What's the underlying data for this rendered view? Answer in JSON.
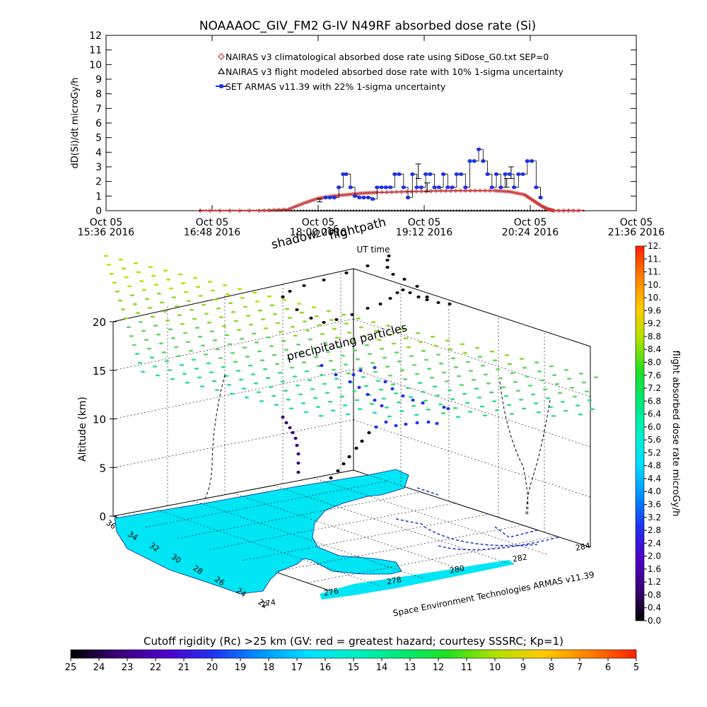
{
  "title": "NOAAAOC_GIV_FM2 G-IV   N49RF  absorbed dose rate (Si)",
  "chart_data": [
    {
      "type": "line",
      "ylabel": "dD(Si)/dt microGy/h",
      "xlabel": "UT time",
      "ylim": [
        0,
        12
      ],
      "xlim_minutes": [
        936,
        1296
      ],
      "y_ticks": [
        "0",
        "1",
        "2",
        "3",
        "4",
        "5",
        "6",
        "7",
        "8",
        "9",
        "10",
        "11",
        "12"
      ],
      "x_ticks": [
        {
          "line1": "Oct 05",
          "line2": "15:36 2016"
        },
        {
          "line1": "Oct 05",
          "line2": "16:48 2016"
        },
        {
          "line1": "Oct 05",
          "line2": "18:00 2016"
        },
        {
          "line1": "Oct 05",
          "line2": "19:12 2016"
        },
        {
          "line1": "Oct 05",
          "line2": "20:24 2016"
        },
        {
          "line1": "Oct 05",
          "line2": "21:36 2016"
        }
      ],
      "legend": [
        {
          "label": "NAIRAS v3 climatological absorbed dose rate using SiDose_G0.txt SEP=0",
          "color": "#c83c3c",
          "marker": "diamond"
        },
        {
          "label": "NAIRAS v3 flight modeled absorbed dose rate with 10% 1-sigma uncertainty",
          "color": "#000000",
          "marker": "triangle"
        },
        {
          "label": "SET ARMAS v11.39 with 22% 1-sigma uncertainty",
          "color": "#1e32e6",
          "marker": "circle"
        }
      ],
      "series": [
        {
          "key": "climatological",
          "color": "#c83c3c",
          "x_minutes": [
            1000,
            1040,
            1060,
            1070,
            1080,
            1090,
            1100,
            1110,
            1120,
            1140,
            1160,
            1180,
            1200,
            1210,
            1220,
            1226,
            1232,
            1236,
            1240,
            1260
          ],
          "y": [
            0,
            0,
            0.1,
            0.5,
            0.85,
            1.0,
            1.1,
            1.2,
            1.25,
            1.3,
            1.35,
            1.37,
            1.37,
            1.3,
            1.1,
            0.7,
            0.3,
            0.1,
            0,
            0
          ]
        },
        {
          "key": "flight-modeled",
          "color": "#000000",
          "x_minutes": [
            1000,
            1240,
            1260
          ],
          "y": [
            0,
            0,
            0
          ],
          "error_bars": [
            {
              "x": 1081,
              "y": 0.7,
              "err": 0.1
            },
            {
              "x": 1148,
              "y": 2.7,
              "err": 0.5
            },
            {
              "x": 1154,
              "y": 1.6,
              "err": 0.3
            },
            {
              "x": 1208,
              "y": 1.9,
              "err": 0.3
            },
            {
              "x": 1211,
              "y": 2.6,
              "err": 0.4
            }
          ]
        },
        {
          "key": "armas",
          "color": "#1e32e6",
          "x_minutes": [
            1085,
            1088,
            1091,
            1094,
            1097,
            1099,
            1102,
            1105,
            1108,
            1111,
            1114,
            1117,
            1120,
            1123,
            1126,
            1129,
            1132,
            1135,
            1138,
            1141,
            1144,
            1147,
            1150,
            1153,
            1156,
            1159,
            1162,
            1165,
            1168,
            1171,
            1174,
            1177,
            1180,
            1183,
            1186,
            1189,
            1192,
            1195,
            1198,
            1201,
            1204,
            1207,
            1210,
            1213,
            1216,
            1219,
            1222,
            1225,
            1228,
            1231
          ],
          "y": [
            0.9,
            0.9,
            0.9,
            1.6,
            2.5,
            2.5,
            1.6,
            1.0,
            0.9,
            0.9,
            0.9,
            0.8,
            1.6,
            1.6,
            1.6,
            1.6,
            2.5,
            2.5,
            1.6,
            0.9,
            2.5,
            1.6,
            1.6,
            2.5,
            2.5,
            1.6,
            1.6,
            2.5,
            1.6,
            1.6,
            2.5,
            2.5,
            1.6,
            3.4,
            3.4,
            4.2,
            3.4,
            2.5,
            1.6,
            2.5,
            1.6,
            2.5,
            2.5,
            1.6,
            2.5,
            2.5,
            3.4,
            3.4,
            1.6,
            0.9
          ]
        }
      ]
    },
    {
      "type": "scatter",
      "zlabel": "Altitude (km)",
      "xlabel": "Space Environment Technologies ARMAS v11.39",
      "z_ticks": [
        "0",
        "5",
        "10",
        "15",
        "20"
      ],
      "lat_ticks": [
        "36",
        "34",
        "32",
        "30",
        "28",
        "26",
        "24",
        "22"
      ],
      "lon_ticks": [
        "274",
        "276",
        "278",
        "280",
        "282",
        "284"
      ],
      "annotations": {
        "flightpath": "flightpath",
        "shadow": "shadow",
        "shadow_year": "2016",
        "precip": "precipitating particles"
      },
      "colorbar": {
        "label": "flight absorbed dose rate microGy/h",
        "ticks": [
          "0.0",
          "0.4",
          "0.8",
          "1.2",
          "1.6",
          "2.0",
          "2.4",
          "2.8",
          "3.2",
          "3.6",
          "4.0",
          "4.4",
          "4.8",
          "5.2",
          "5.6",
          "6.0",
          "6.4",
          "6.8",
          "7.2",
          "7.6",
          "8.0",
          "8.4",
          "8.8",
          "9.2",
          "9.6",
          "10.",
          "10.",
          "11.",
          "11.",
          "12."
        ],
        "colors": [
          "#000000",
          "#3c0078",
          "#5000c8",
          "#2030f0",
          "#0090ff",
          "#00ddff",
          "#00f0c8",
          "#00e878",
          "#20e020",
          "#b0e000",
          "#ffcc00",
          "#ff8000",
          "#ff2000"
        ]
      }
    },
    {
      "type": "heatmap",
      "title": "Cutoff rigidity (Rc) >25 km (GV: red = greatest hazard; courtesy SSSRC; Kp=1)",
      "ticks": [
        "25",
        "24",
        "23",
        "22",
        "21",
        "20",
        "19",
        "18",
        "17",
        "16",
        "15",
        "14",
        "13",
        "12",
        "11",
        "10",
        "9",
        "8",
        "7",
        "6",
        "5"
      ],
      "colors": [
        "#000000",
        "#3c0078",
        "#5000c8",
        "#2030f0",
        "#0090ff",
        "#00ddff",
        "#00f0c8",
        "#00e878",
        "#20e020",
        "#b0e000",
        "#ffcc00",
        "#ff8000",
        "#ff2000"
      ]
    }
  ]
}
